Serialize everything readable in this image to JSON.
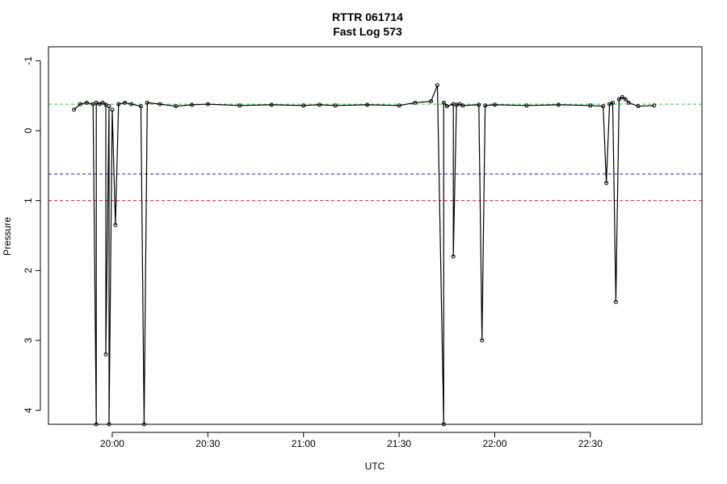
{
  "chart_data": {
    "type": "line",
    "title": "RTTR 061714",
    "subtitle": "Fast Log 573",
    "xlabel": "UTC",
    "ylabel": "Pressure",
    "xlim": [
      "19:40",
      "23:05"
    ],
    "ylim": [
      4.2,
      -1.2
    ],
    "y_axis_inverted": true,
    "x_ticks": [
      "20:00",
      "20:30",
      "21:00",
      "21:30",
      "22:00",
      "22:30"
    ],
    "y_ticks": [
      "-1",
      "0",
      "1",
      "2",
      "3",
      "4"
    ],
    "grid": false,
    "series": [
      {
        "color": "#000000",
        "marker": "open-circle",
        "x": [
          "19:48",
          "19:50",
          "19:52",
          "19:54",
          "19:55",
          "19:55",
          "19:56",
          "19:57",
          "19:58",
          "19:58",
          "19:59",
          "19:59",
          "20:00",
          "20:01",
          "20:02",
          "20:04",
          "20:06",
          "20:09",
          "20:10",
          "20:11",
          "20:15",
          "20:20",
          "20:25",
          "20:30",
          "20:40",
          "20:50",
          "21:00",
          "21:05",
          "21:10",
          "21:20",
          "21:30",
          "21:35",
          "21:40",
          "21:42",
          "21:44",
          "21:44",
          "21:45",
          "21:47",
          "21:47",
          "21:48",
          "21:49",
          "21:50",
          "21:55",
          "21:56",
          "21:57",
          "22:00",
          "22:10",
          "22:20",
          "22:30",
          "22:34",
          "22:35",
          "22:36",
          "22:37",
          "22:38",
          "22:39",
          "22:40",
          "22:41",
          "22:42",
          "22:45",
          "22:50"
        ],
        "y": [
          -0.3,
          -0.38,
          -0.4,
          -0.38,
          4.2,
          -0.4,
          -0.38,
          -0.4,
          -0.37,
          3.2,
          -0.35,
          4.2,
          -0.3,
          1.35,
          -0.38,
          -0.4,
          -0.38,
          -0.35,
          4.2,
          -0.4,
          -0.38,
          -0.35,
          -0.37,
          -0.38,
          -0.36,
          -0.37,
          -0.36,
          -0.37,
          -0.36,
          -0.37,
          -0.36,
          -0.4,
          -0.42,
          -0.65,
          4.2,
          -0.4,
          -0.35,
          -0.38,
          1.8,
          -0.37,
          -0.38,
          -0.36,
          -0.37,
          3.0,
          -0.36,
          -0.37,
          -0.36,
          -0.37,
          -0.36,
          -0.35,
          0.75,
          -0.38,
          -0.4,
          2.45,
          -0.45,
          -0.48,
          -0.45,
          -0.4,
          -0.35,
          -0.36
        ]
      }
    ],
    "reference_lines": [
      {
        "y": -0.38,
        "color": "#33cc33",
        "style": "dashed"
      },
      {
        "y": 0.62,
        "color": "#2222bb",
        "style": "dashed"
      },
      {
        "y": 1.0,
        "color": "#dd2233",
        "style": "dashed"
      }
    ]
  }
}
